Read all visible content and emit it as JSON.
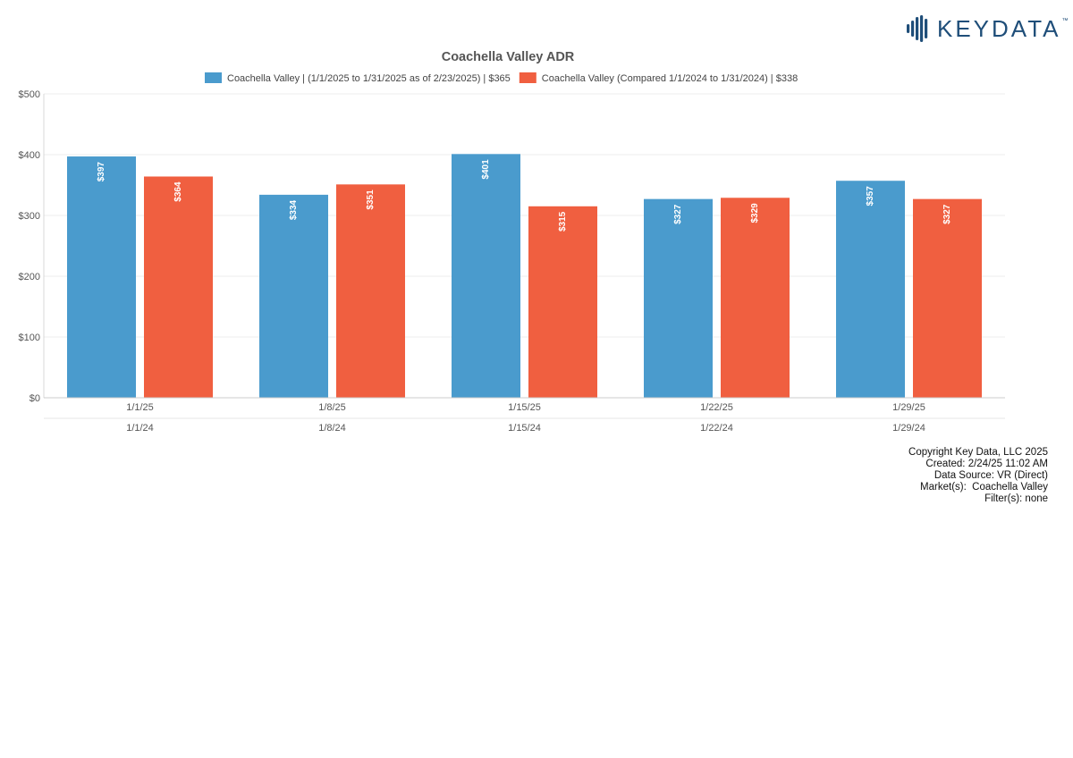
{
  "brand": {
    "name": "KEYDATA",
    "trademark": "™",
    "icon": "bars-logo-icon",
    "color": "#1f4e79"
  },
  "chart_data": {
    "type": "bar",
    "title": "Coachella Valley ADR",
    "categories": [
      "1/1/25",
      "1/8/25",
      "1/15/25",
      "1/22/25",
      "1/29/25"
    ],
    "secondary_categories": [
      "1/1/24",
      "1/8/24",
      "1/15/24",
      "1/22/24",
      "1/29/24"
    ],
    "series": [
      {
        "name": "Coachella Valley | (1/1/2025 to 1/31/2025 as of 2/23/2025) | $365",
        "values": [
          397,
          334,
          401,
          327,
          357
        ],
        "labels": [
          "$397",
          "$334",
          "$401",
          "$327",
          "$357"
        ],
        "color": "#4a9bcd"
      },
      {
        "name": "Coachella Valley (Compared 1/1/2024 to 1/31/2024) | $338",
        "values": [
          364,
          351,
          315,
          329,
          327
        ],
        "labels": [
          "$364",
          "$351",
          "$315",
          "$329",
          "$327"
        ],
        "color": "#f05f40"
      }
    ],
    "yticks": [
      "$0",
      "$100",
      "$200",
      "$300",
      "$400",
      "$500"
    ],
    "ylim": [
      0,
      500
    ],
    "grid": true,
    "legend": "top-center",
    "xlabel": "",
    "ylabel": ""
  },
  "footer": {
    "copyright": "Copyright Key Data, LLC 2025",
    "created": "Created: 2/24/25 11:02 AM",
    "source": "Data Source: VR (Direct)",
    "markets": "Market(s):  Coachella Valley",
    "filters": "Filter(s): none"
  }
}
